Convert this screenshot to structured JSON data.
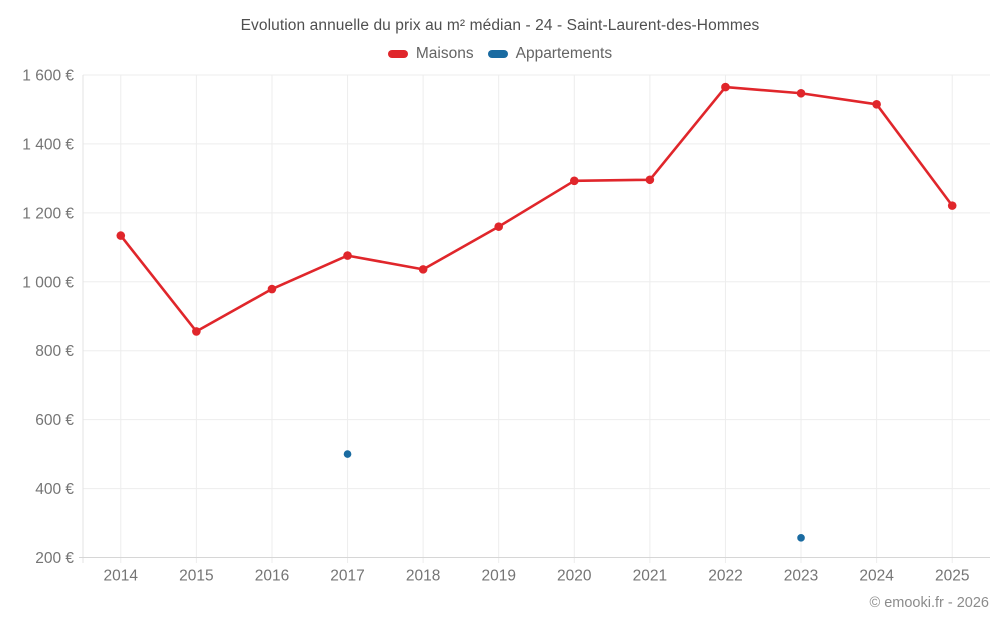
{
  "chart": {
    "title": "Evolution annuelle du prix au m² médian - 24 - Saint-Laurent-des-Hommes"
  },
  "legend": {
    "items": [
      {
        "label": "Maisons",
        "color": "#e0262b"
      },
      {
        "label": "Appartements",
        "color": "#1a6ba1"
      }
    ]
  },
  "footer": {
    "copyright": "© emooki.fr - 2026"
  },
  "colors": {
    "grid_line": "#ededed",
    "axis_line": "#d6d6d6",
    "y_axis_line": "#e3e3e3",
    "tick_text": "#757575",
    "title_text": "#4f4f4f",
    "legend_text": "#646464",
    "footer_text": "#8c8c8c",
    "background": "#ffffff",
    "maisons_red": "#e0262b",
    "appartements_blue": "#1a6ba1"
  },
  "chart_data": {
    "type": "line",
    "title": "Evolution annuelle du prix au m² médian - 24 - Saint-Laurent-des-Hommes",
    "x": [
      "2014",
      "2015",
      "2016",
      "2017",
      "2018",
      "2019",
      "2020",
      "2021",
      "2022",
      "2023",
      "2024",
      "2025"
    ],
    "series": [
      {
        "name": "Maisons",
        "color": "#e0262b",
        "line_width": 2.6,
        "marker_radius": 4.3,
        "values": [
          1134,
          856,
          979,
          1076,
          1036,
          1160,
          1293,
          1296,
          1565,
          1547,
          1515,
          1221
        ]
      },
      {
        "name": "Appartements",
        "color": "#1a6ba1",
        "line_width": 0,
        "marker_radius": 3.8,
        "values": [
          null,
          null,
          null,
          500,
          null,
          null,
          null,
          null,
          null,
          257,
          null,
          null
        ]
      }
    ],
    "xlabel": "",
    "ylabel": "",
    "ylim": [
      200,
      1600
    ],
    "y_ticks": [
      200,
      400,
      600,
      800,
      1000,
      1200,
      1400,
      1600
    ],
    "y_tick_labels": [
      "200 €",
      "400 €",
      "600 €",
      "800 €",
      "1 000 €",
      "1 200 €",
      "1 400 €",
      "1 600 €"
    ],
    "grid": true,
    "legend_position": "top"
  }
}
